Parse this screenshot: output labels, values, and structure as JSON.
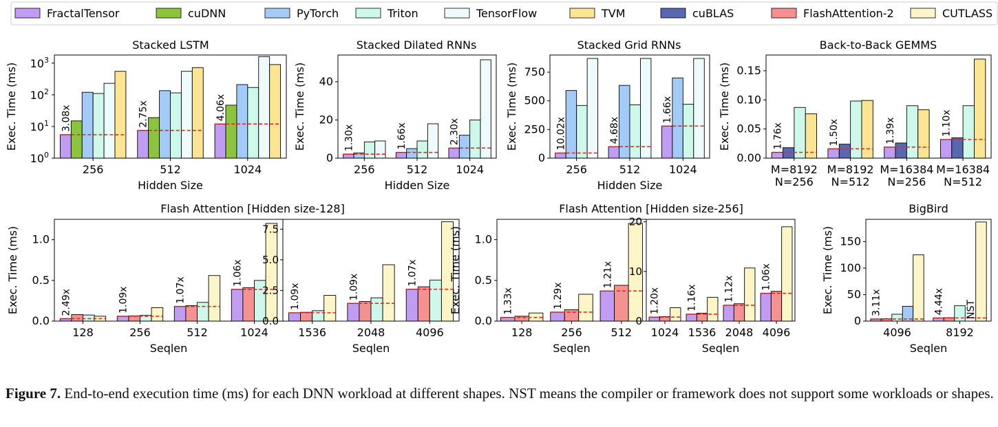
{
  "legend": [
    {
      "name": "FractalTensor",
      "color": "#c09cf2"
    },
    {
      "name": "cuDNN",
      "color": "#8cc43e"
    },
    {
      "name": "PyTorch",
      "color": "#a3cbf7"
    },
    {
      "name": "Triton",
      "color": "#cdf8ea"
    },
    {
      "name": "TensorFlow",
      "color": "#eefbfc"
    },
    {
      "name": "TVM",
      "color": "#fce592"
    },
    {
      "name": "cuBLAS",
      "color": "#5967b3"
    },
    {
      "name": "FlashAttention-2",
      "color": "#f59190"
    },
    {
      "name": "CUTLASS",
      "color": "#fcf5c8"
    }
  ],
  "caption": {
    "label": "Figure 7.",
    "text": "End-to-end execution time (ms) for each DNN workload at different shapes. NST means the compiler or framework does not support some workloads or shapes."
  },
  "chart_data": [
    {
      "type": "bar",
      "title": "Stacked LSTM",
      "xlabel": "Hidden Size",
      "ylabel": "Exec. Time (ms)",
      "yscale": "log",
      "ylim": [
        1,
        1800
      ],
      "yticks": [
        1,
        10,
        100,
        1000
      ],
      "ytick_labels": [
        "10^0",
        "10^1",
        "10^2",
        "10^3"
      ],
      "categories": [
        "256",
        "512",
        "1024"
      ],
      "series": [
        {
          "name": "FractalTensor",
          "values": [
            5.5,
            7.5,
            12
          ]
        },
        {
          "name": "cuDNN",
          "values": [
            15,
            19,
            47
          ]
        },
        {
          "name": "PyTorch",
          "values": [
            120,
            135,
            210
          ]
        },
        {
          "name": "Triton",
          "values": [
            110,
            115,
            170
          ]
        },
        {
          "name": "TensorFlow",
          "values": [
            230,
            550,
            1600
          ]
        },
        {
          "name": "TVM",
          "values": [
            550,
            720,
            900
          ]
        }
      ],
      "reference_line": [
        5.5,
        7.5,
        12
      ],
      "speedup_labels": [
        "3.08x",
        "2.75x",
        "4.06x"
      ]
    },
    {
      "type": "bar",
      "title": "Stacked Dilated RNNs",
      "xlabel": "Hidden Size",
      "ylabel": "Exec. Time (ms)",
      "ylim": [
        0,
        54
      ],
      "yticks": [
        0,
        20,
        40
      ],
      "categories": [
        "256",
        "512",
        "1024"
      ],
      "series": [
        {
          "name": "FractalTensor",
          "values": [
            2.1,
            3.0,
            5.3
          ]
        },
        {
          "name": "PyTorch",
          "values": [
            2.7,
            5.0,
            12.0
          ]
        },
        {
          "name": "Triton",
          "values": [
            8.5,
            9.0,
            20.0
          ]
        },
        {
          "name": "TensorFlow",
          "values": [
            9.0,
            18.0,
            51.5
          ]
        }
      ],
      "reference_line": [
        2.1,
        3.0,
        5.3
      ],
      "speedup_labels": [
        "1.30x",
        "1.66x",
        "2.30x"
      ]
    },
    {
      "type": "bar",
      "title": "Stacked Grid RNNs",
      "xlabel": "Hidden Size",
      "ylabel": "Exec. Time (ms)",
      "ylim": [
        0,
        900
      ],
      "yticks": [
        0,
        250,
        500,
        750
      ],
      "categories": [
        "256",
        "512",
        "1024"
      ],
      "series": [
        {
          "name": "FractalTensor",
          "values": [
            45,
            100,
            280
          ]
        },
        {
          "name": "PyTorch",
          "values": [
            590,
            635,
            700
          ]
        },
        {
          "name": "Triton",
          "values": [
            460,
            465,
            470
          ]
        },
        {
          "name": "TensorFlow",
          "values": [
            870,
            870,
            870
          ]
        }
      ],
      "reference_line": [
        45,
        100,
        280
      ],
      "speedup_labels": [
        "10.02x",
        "4.68x",
        "1.66x"
      ]
    },
    {
      "type": "bar",
      "title": "Back-to-Back GEMMS",
      "xlabel": "",
      "ylabel": "Exec. Time (ms)",
      "ylim": [
        0,
        0.177
      ],
      "yticks": [
        0.0,
        0.05,
        0.1,
        0.15
      ],
      "ytick_labels": [
        "0.00",
        "0.05",
        "0.10",
        "0.15"
      ],
      "categories": [
        "M=8192\nN=256",
        "M=8192\nN=512",
        "M=16384\nN=256",
        "M=16384\nN=512"
      ],
      "series": [
        {
          "name": "FractalTensor",
          "values": [
            0.01,
            0.016,
            0.019,
            0.032
          ]
        },
        {
          "name": "cuBLAS",
          "values": [
            0.018,
            0.024,
            0.026,
            0.035
          ]
        },
        {
          "name": "Triton",
          "values": [
            0.087,
            0.098,
            0.09,
            0.09
          ]
        },
        {
          "name": "TVM",
          "values": [
            0.076,
            0.099,
            0.083,
            0.17
          ]
        }
      ],
      "reference_line": [
        0.01,
        0.016,
        0.019,
        0.032
      ],
      "speedup_labels": [
        "1.76x",
        "1.50x",
        "1.39x",
        "1.10x"
      ]
    },
    {
      "type": "bar",
      "title": "Flash Attention  [Hidden size-128]",
      "xlabel": "Seqlen",
      "ylabel": "Exec. Time (ms)",
      "ylim": [
        0,
        1.25
      ],
      "yticks": [
        0.0,
        0.5,
        1.0
      ],
      "ytick_labels": [
        "0.0",
        "0.5",
        "1.0"
      ],
      "categories": [
        "128",
        "256",
        "512",
        "1024"
      ],
      "series": [
        {
          "name": "FractalTensor",
          "values": [
            0.03,
            0.06,
            0.18,
            0.39
          ]
        },
        {
          "name": "FlashAttention-2",
          "values": [
            0.08,
            0.065,
            0.19,
            0.41
          ]
        },
        {
          "name": "Triton",
          "values": [
            0.075,
            0.07,
            0.23,
            0.5
          ]
        },
        {
          "name": "CUTLASS",
          "values": [
            0.06,
            0.165,
            0.56,
            1.2
          ]
        }
      ],
      "reference_line": [
        0.03,
        0.06,
        0.18,
        0.39
      ],
      "speedup_labels": [
        "2.49x",
        "1.09x",
        "1.07x",
        "1.06x"
      ]
    },
    {
      "type": "bar",
      "title": "",
      "xlabel": "Seqlen",
      "ylabel": "",
      "ylim": [
        0,
        8.3
      ],
      "yticks": [
        0.0,
        2.5,
        5.0,
        7.5
      ],
      "ytick_labels": [
        "0.0",
        "2.5",
        "5.0",
        "7.5"
      ],
      "categories": [
        "1536",
        "2048",
        "4096"
      ],
      "series": [
        {
          "name": "FractalTensor",
          "values": [
            0.68,
            1.45,
            2.6
          ]
        },
        {
          "name": "FlashAttention-2",
          "values": [
            0.72,
            1.6,
            2.8
          ]
        },
        {
          "name": "Triton",
          "values": [
            0.85,
            1.9,
            3.35
          ]
        },
        {
          "name": "CUTLASS",
          "values": [
            2.1,
            4.6,
            8.1
          ]
        }
      ],
      "reference_line": [
        0.68,
        1.45,
        2.6
      ],
      "speedup_labels": [
        "1.09x",
        "1.09x",
        "1.07x"
      ]
    },
    {
      "type": "bar",
      "title": "Flash Attention  [Hidden size-256]",
      "xlabel": "Seqlen",
      "ylabel": "Exec. Time (ms)",
      "ylim": [
        0,
        1.25
      ],
      "yticks": [
        0.0,
        0.5,
        1.0
      ],
      "ytick_labels": [
        "0.0",
        "0.5",
        "1.0"
      ],
      "categories": [
        "128",
        "256",
        "512"
      ],
      "series": [
        {
          "name": "FractalTensor",
          "values": [
            0.045,
            0.11,
            0.37
          ]
        },
        {
          "name": "FlashAttention-2",
          "values": [
            0.06,
            0.14,
            0.44
          ]
        },
        {
          "name": "CUTLASS",
          "values": [
            0.1,
            0.33,
            1.2
          ]
        }
      ],
      "reference_line": [
        0.045,
        0.11,
        0.37
      ],
      "speedup_labels": [
        "1.33x",
        "1.29x",
        "1.21x"
      ]
    },
    {
      "type": "bar",
      "title": "",
      "xlabel": "Seqlen",
      "ylabel": "",
      "ylim": [
        0,
        20.5
      ],
      "yticks": [
        0,
        10,
        20
      ],
      "categories": [
        "1024",
        "1536",
        "2048",
        "4096"
      ],
      "series": [
        {
          "name": "FractalTensor",
          "values": [
            0.8,
            1.4,
            3.2,
            5.6
          ]
        },
        {
          "name": "FlashAttention-2",
          "values": [
            0.9,
            1.6,
            3.5,
            6.0
          ]
        },
        {
          "name": "CUTLASS",
          "values": [
            2.7,
            4.8,
            10.7,
            19.0
          ]
        }
      ],
      "reference_line": [
        0.8,
        1.4,
        3.2,
        5.6
      ],
      "speedup_labels": [
        "1.20x",
        "1.16x",
        "1.12x",
        "1.06x"
      ]
    },
    {
      "type": "bar",
      "title": "BigBird",
      "xlabel": "Seqlen",
      "ylabel": "Exec. Time (ms)",
      "ylim": [
        0,
        192
      ],
      "yticks": [
        0,
        50,
        100,
        150
      ],
      "categories": [
        "4096",
        "8192"
      ],
      "series": [
        {
          "name": "FractalTensor",
          "values": [
            4,
            6
          ]
        },
        {
          "name": "FlashAttention-2",
          "values": [
            4.5,
            6.5
          ]
        },
        {
          "name": "Triton",
          "values": [
            13,
            29
          ]
        },
        {
          "name": "PyTorch",
          "values": [
            28,
            null
          ]
        },
        {
          "name": "CUTLASS",
          "values": [
            125,
            187
          ]
        }
      ],
      "reference_line": [
        4,
        6
      ],
      "speedup_labels": [
        "3.11x",
        "4.44x"
      ],
      "annotations": [
        {
          "category": "8192",
          "series": "PyTorch",
          "text": "NST"
        }
      ]
    }
  ]
}
